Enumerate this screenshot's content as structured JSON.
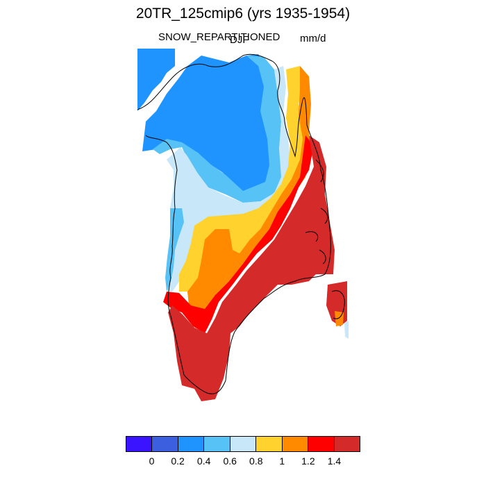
{
  "title": "20TR_125cmip6 (yrs 1935-1954)",
  "variable": "SNOW_REPARTITIONED",
  "season": "DJF",
  "units": "mm/d",
  "colorbar": {
    "colors": [
      "#3a13ff",
      "#3c5fdf",
      "#1f94ff",
      "#57c2f5",
      "#c8e7f8",
      "#ffd22d",
      "#ff8a00",
      "#ff0000",
      "#d42a2a"
    ],
    "labels": [
      "0",
      "0.2",
      "0.4",
      "0.6",
      "0.8",
      "1",
      "1.2",
      "1.4"
    ]
  }
}
